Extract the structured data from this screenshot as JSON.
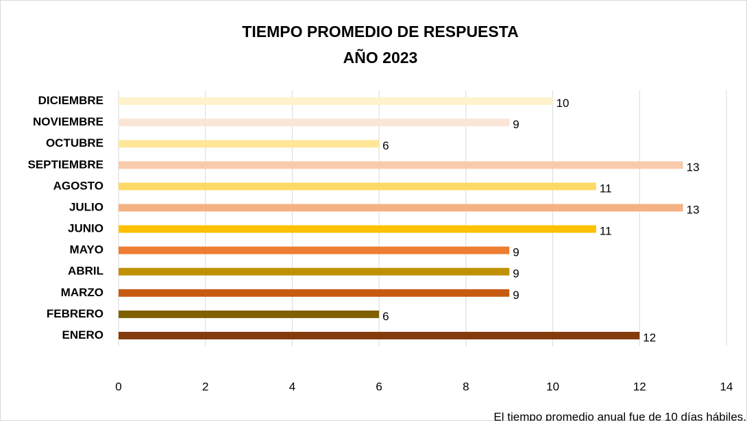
{
  "chart_data": {
    "type": "bar",
    "orientation": "horizontal",
    "title": "TIEMPO PROMEDIO DE RESPUESTA",
    "subtitle": "AÑO 2023",
    "categories": [
      "ENERO",
      "FEBRERO",
      "MARZO",
      "ABRIL",
      "MAYO",
      "JUNIO",
      "JULIO",
      "AGOSTO",
      "SEPTIEMBRE",
      "OCTUBRE",
      "NOVIEMBRE",
      "DICIEMBRE"
    ],
    "values": [
      12,
      6,
      9,
      9,
      9,
      11,
      13,
      11,
      13,
      6,
      9,
      10
    ],
    "colors": [
      "#843c0c",
      "#7f6000",
      "#c55a11",
      "#bf9000",
      "#ed7d31",
      "#ffc000",
      "#f4b183",
      "#ffd966",
      "#f8cbad",
      "#ffe699",
      "#fbe5d6",
      "#fff2cc"
    ],
    "xlim": [
      0,
      14
    ],
    "xticks": [
      0,
      2,
      4,
      6,
      8,
      10,
      12,
      14
    ],
    "grid": true,
    "annotation": "El tiempo promedio anual fue de 10 días hábiles."
  }
}
